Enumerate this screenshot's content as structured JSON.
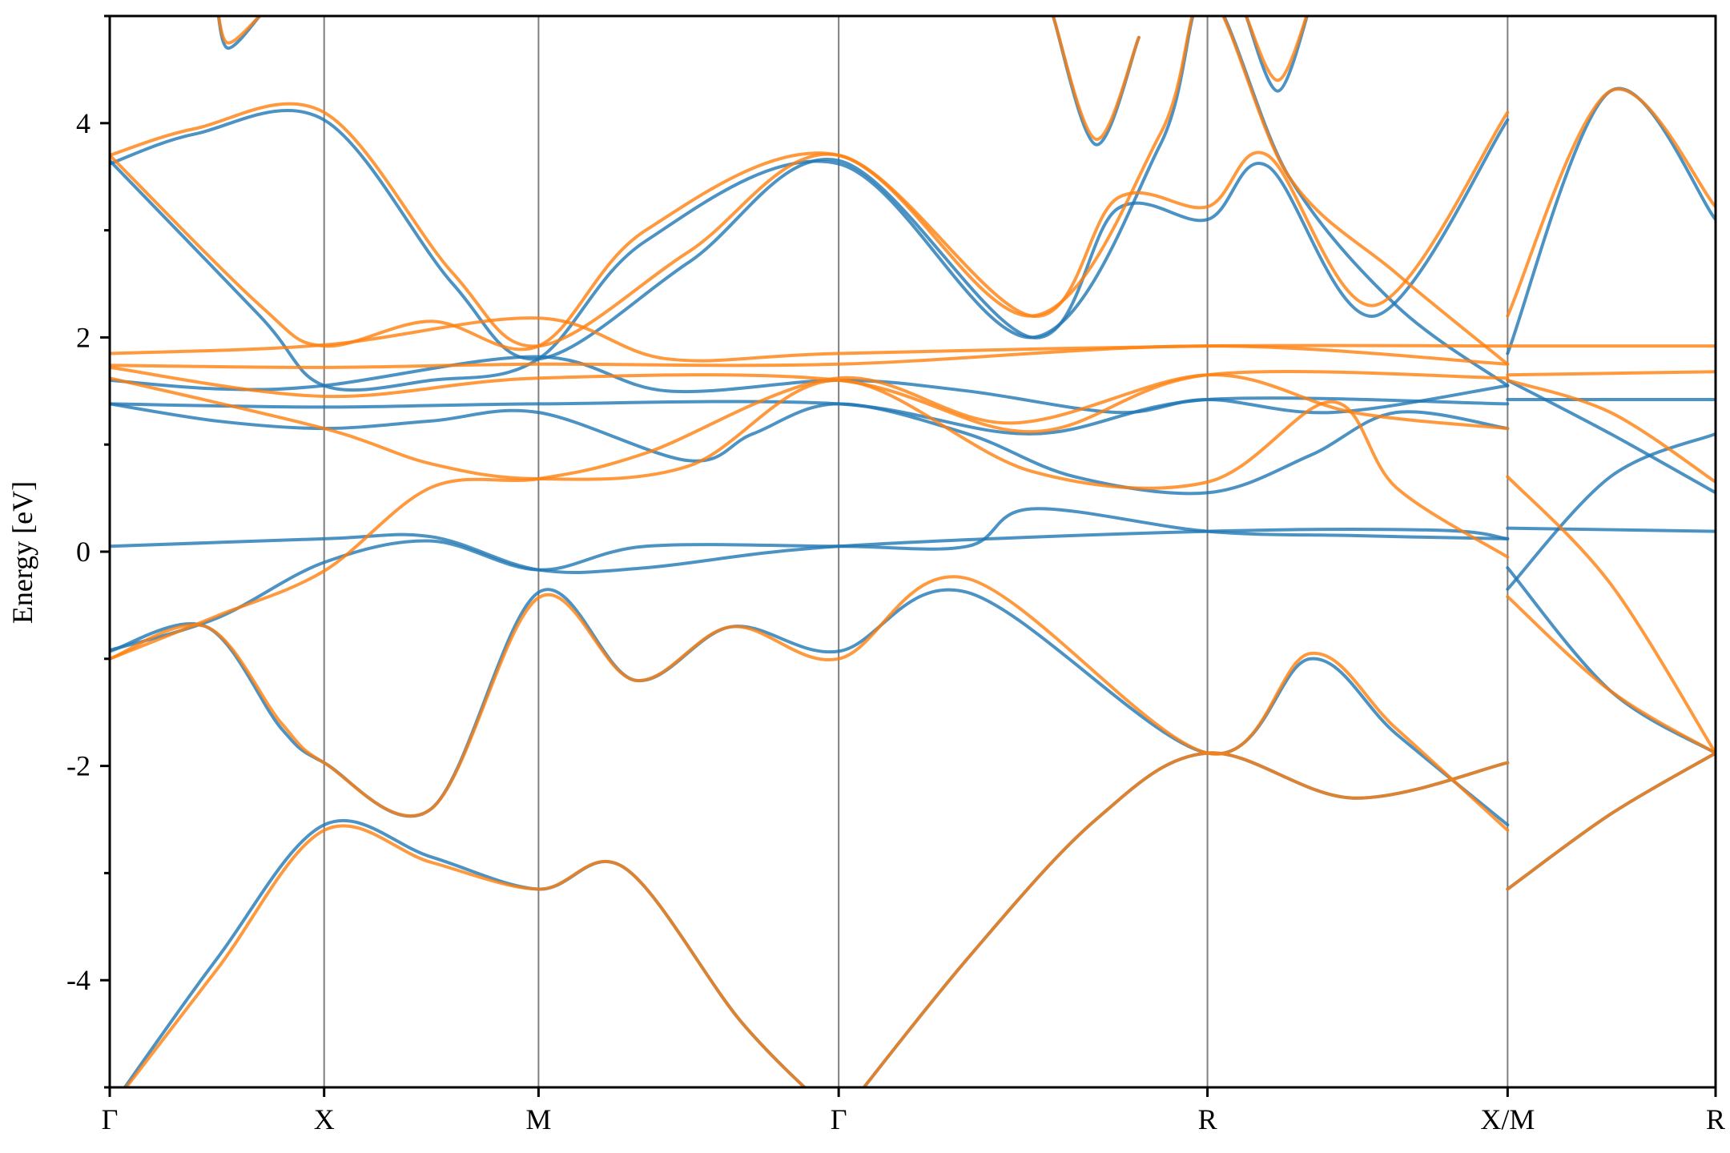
{
  "chart_data": {
    "type": "line",
    "title": "",
    "ylabel": "Energy [eV]",
    "xlabel": "",
    "ylim": [
      -5,
      5
    ],
    "xlim": [
      0,
      7.49
    ],
    "grid": false,
    "legend": "none",
    "yticks": [
      -4,
      -2,
      0,
      2,
      4
    ],
    "ytick_labels": [
      "-4",
      "-2",
      "0",
      "2",
      "4"
    ],
    "kpoints": [
      {
        "label": "Γ",
        "x": 0
      },
      {
        "label": "X",
        "x": 1.0
      },
      {
        "label": "M",
        "x": 2.0
      },
      {
        "label": "Γ",
        "x": 3.4
      },
      {
        "label": "R",
        "x": 5.12
      },
      {
        "label": "X/M",
        "x": 6.52
      },
      {
        "label": "R",
        "x": 7.49
      }
    ],
    "colors": {
      "series1": "#1f77b4",
      "series2": "#ff7f0e",
      "kline": "#7f7f7f"
    },
    "series": [
      {
        "color": "#1f77b4",
        "bands": [
          [
            [
              0,
              -5.2
            ],
            [
              0.5,
              -3.8
            ],
            [
              1.0,
              -2.55
            ],
            [
              1.5,
              -2.85
            ],
            [
              2.0,
              -3.15
            ],
            [
              2.4,
              -2.95
            ],
            [
              2.95,
              -4.4
            ],
            [
              3.4,
              -5.3
            ]
          ],
          [
            [
              3.4,
              -5.3
            ],
            [
              4.0,
              -3.8
            ],
            [
              4.6,
              -2.5
            ],
            [
              5.12,
              -1.88
            ],
            [
              5.8,
              -2.3
            ],
            [
              6.52,
              -1.97
            ]
          ],
          [
            [
              6.52,
              -3.15
            ],
            [
              7.0,
              -2.45
            ],
            [
              7.49,
              -1.88
            ]
          ],
          [
            [
              0,
              -0.93
            ],
            [
              0.45,
              -0.7
            ],
            [
              0.8,
              -1.65
            ],
            [
              1.0,
              -1.97
            ],
            [
              1.5,
              -2.4
            ],
            [
              2.0,
              -0.38
            ],
            [
              2.45,
              -1.2
            ],
            [
              2.9,
              -0.7
            ],
            [
              3.4,
              -0.93
            ],
            [
              4.0,
              -0.38
            ],
            [
              5.12,
              -1.88
            ],
            [
              5.6,
              -1.0
            ],
            [
              6.0,
              -1.7
            ],
            [
              6.52,
              -2.55
            ]
          ],
          [
            [
              6.52,
              -0.15
            ],
            [
              7.0,
              -1.3
            ],
            [
              7.49,
              -1.88
            ]
          ],
          [
            [
              0,
              -0.92
            ],
            [
              0.5,
              -0.62
            ],
            [
              1.0,
              -0.1
            ],
            [
              1.5,
              0.1
            ],
            [
              2.0,
              -0.17
            ],
            [
              2.5,
              0.05
            ],
            [
              3.4,
              0.05
            ],
            [
              4.0,
              0.05
            ],
            [
              4.3,
              0.4
            ],
            [
              5.12,
              0.19
            ],
            [
              5.8,
              0.15
            ],
            [
              6.52,
              0.12
            ]
          ],
          [
            [
              6.52,
              0.22
            ],
            [
              7.49,
              0.19
            ]
          ],
          [
            [
              0,
              0.05
            ],
            [
              1.0,
              0.12
            ],
            [
              1.5,
              0.14
            ],
            [
              2.0,
              -0.17
            ],
            [
              2.5,
              -0.15
            ],
            [
              3.4,
              0.05
            ],
            [
              5.12,
              0.19
            ],
            [
              6.2,
              0.2
            ],
            [
              6.52,
              0.12
            ]
          ],
          [
            [
              6.52,
              -0.35
            ],
            [
              7.0,
              0.7
            ],
            [
              7.49,
              1.1
            ]
          ],
          [
            [
              0,
              1.38
            ],
            [
              0.5,
              1.22
            ],
            [
              1.0,
              1.15
            ],
            [
              1.5,
              1.22
            ],
            [
              2.0,
              1.3
            ],
            [
              2.7,
              0.85
            ],
            [
              3.0,
              1.1
            ],
            [
              3.4,
              1.38
            ],
            [
              4.0,
              1.1
            ],
            [
              4.5,
              0.7
            ],
            [
              5.12,
              0.55
            ],
            [
              5.6,
              0.9
            ],
            [
              6.0,
              1.3
            ],
            [
              6.52,
              1.15
            ]
          ],
          [
            [
              0,
              1.38
            ],
            [
              1.0,
              1.35
            ],
            [
              2.0,
              1.38
            ],
            [
              3.4,
              1.38
            ],
            [
              4.3,
              1.1
            ],
            [
              5.12,
              1.42
            ],
            [
              6.52,
              1.38
            ]
          ],
          [
            [
              6.52,
              1.42
            ],
            [
              7.49,
              1.42
            ]
          ],
          [
            [
              0,
              1.6
            ],
            [
              0.5,
              1.52
            ],
            [
              1.0,
              1.55
            ],
            [
              2.0,
              1.82
            ],
            [
              2.6,
              1.5
            ],
            [
              3.4,
              1.6
            ],
            [
              4.0,
              1.5
            ],
            [
              4.7,
              1.3
            ],
            [
              5.12,
              1.42
            ],
            [
              5.7,
              1.3
            ],
            [
              6.52,
              1.55
            ]
          ],
          [
            [
              6.52,
              1.6
            ],
            [
              7.0,
              1.1
            ],
            [
              7.49,
              0.55
            ]
          ],
          [
            [
              0,
              3.62
            ],
            [
              0.4,
              3.9
            ],
            [
              1.0,
              4.03
            ],
            [
              1.6,
              2.5
            ],
            [
              2.0,
              1.8
            ],
            [
              2.7,
              2.7
            ],
            [
              3.4,
              3.65
            ],
            [
              4.3,
              2.0
            ],
            [
              4.7,
              3.2
            ],
            [
              5.12,
              3.1
            ],
            [
              5.4,
              3.6
            ],
            [
              5.9,
              2.2
            ],
            [
              6.52,
              4.03
            ]
          ],
          [
            [
              0,
              3.65
            ],
            [
              0.7,
              2.2
            ],
            [
              1.0,
              1.55
            ],
            [
              1.5,
              1.6
            ],
            [
              2.0,
              1.8
            ],
            [
              2.5,
              2.9
            ],
            [
              3.4,
              3.62
            ],
            [
              4.3,
              2.0
            ],
            [
              4.9,
              3.8
            ],
            [
              5.12,
              5.2
            ],
            [
              5.5,
              3.5
            ],
            [
              6.0,
              2.3
            ],
            [
              6.52,
              1.55
            ]
          ],
          [
            [
              6.52,
              1.85
            ],
            [
              7.0,
              4.3
            ],
            [
              7.49,
              3.1
            ]
          ],
          [
            [
              0.5,
              5.1
            ],
            [
              0.55,
              4.7
            ],
            [
              0.7,
              5.0
            ]
          ],
          [
            [
              4.4,
              5.0
            ],
            [
              4.6,
              3.8
            ],
            [
              4.8,
              4.8
            ]
          ],
          [
            [
              5.3,
              5.0
            ],
            [
              5.45,
              4.3
            ],
            [
              5.6,
              5.1
            ]
          ]
        ]
      },
      {
        "color": "#ff7f0e",
        "bands": [
          [
            [
              0,
              -5.2
            ],
            [
              0.5,
              -3.9
            ],
            [
              1.0,
              -2.6
            ],
            [
              1.5,
              -2.9
            ],
            [
              2.0,
              -3.15
            ],
            [
              2.4,
              -2.95
            ],
            [
              2.95,
              -4.4
            ],
            [
              3.4,
              -5.3
            ]
          ],
          [
            [
              3.4,
              -5.3
            ],
            [
              4.0,
              -3.8
            ],
            [
              4.6,
              -2.5
            ],
            [
              5.12,
              -1.88
            ],
            [
              5.8,
              -2.3
            ],
            [
              6.52,
              -1.97
            ]
          ],
          [
            [
              6.52,
              -3.15
            ],
            [
              7.0,
              -2.45
            ],
            [
              7.49,
              -1.88
            ]
          ],
          [
            [
              0,
              -1.0
            ],
            [
              0.45,
              -0.7
            ],
            [
              0.8,
              -1.6
            ],
            [
              1.0,
              -1.97
            ],
            [
              1.5,
              -2.4
            ],
            [
              2.0,
              -0.43
            ],
            [
              2.45,
              -1.2
            ],
            [
              2.9,
              -0.7
            ],
            [
              3.4,
              -1.0
            ],
            [
              4.0,
              -0.25
            ],
            [
              5.12,
              -1.88
            ],
            [
              5.6,
              -0.95
            ],
            [
              6.0,
              -1.65
            ],
            [
              6.52,
              -2.6
            ]
          ],
          [
            [
              6.52,
              -0.42
            ],
            [
              7.0,
              -1.3
            ],
            [
              7.49,
              -1.88
            ]
          ],
          [
            [
              0,
              -1.0
            ],
            [
              0.5,
              -0.6
            ],
            [
              1.0,
              -0.18
            ],
            [
              1.5,
              0.6
            ],
            [
              2.0,
              0.68
            ],
            [
              2.5,
              0.92
            ],
            [
              3.4,
              1.62
            ],
            [
              4.2,
              1.2
            ],
            [
              5.12,
              1.65
            ],
            [
              5.8,
              1.3
            ],
            [
              6.52,
              1.15
            ]
          ],
          [
            [
              6.52,
              0.7
            ],
            [
              7.0,
              -0.3
            ],
            [
              7.49,
              -1.88
            ]
          ],
          [
            [
              0,
              1.62
            ],
            [
              1.0,
              1.15
            ],
            [
              1.5,
              0.82
            ],
            [
              2.0,
              0.68
            ],
            [
              2.7,
              0.8
            ],
            [
              3.4,
              1.6
            ],
            [
              4.3,
              0.75
            ],
            [
              5.12,
              0.65
            ],
            [
              5.7,
              1.4
            ],
            [
              6.0,
              0.6
            ],
            [
              6.52,
              -0.05
            ]
          ],
          [
            [
              6.52,
              1.6
            ],
            [
              7.0,
              1.3
            ],
            [
              7.49,
              0.65
            ]
          ],
          [
            [
              0,
              1.72
            ],
            [
              1.0,
              1.45
            ],
            [
              2.0,
              1.62
            ],
            [
              3.4,
              1.6
            ],
            [
              4.3,
              1.12
            ],
            [
              5.12,
              1.65
            ],
            [
              6.52,
              1.62
            ]
          ],
          [
            [
              6.52,
              1.65
            ],
            [
              7.49,
              1.68
            ]
          ],
          [
            [
              0,
              1.74
            ],
            [
              1.0,
              1.72
            ],
            [
              2.0,
              1.75
            ],
            [
              3.4,
              1.75
            ],
            [
              5.12,
              1.92
            ],
            [
              6.52,
              1.75
            ]
          ],
          [
            [
              0,
              1.85
            ],
            [
              1.0,
              1.93
            ],
            [
              2.0,
              2.18
            ],
            [
              2.6,
              1.8
            ],
            [
              3.4,
              1.85
            ],
            [
              5.12,
              1.92
            ],
            [
              6.52,
              1.92
            ]
          ],
          [
            [
              6.52,
              1.92
            ],
            [
              7.49,
              1.92
            ]
          ],
          [
            [
              0,
              3.7
            ],
            [
              0.4,
              3.95
            ],
            [
              1.0,
              4.1
            ],
            [
              1.6,
              2.6
            ],
            [
              2.0,
              1.92
            ],
            [
              2.7,
              2.8
            ],
            [
              3.4,
              3.7
            ],
            [
              4.3,
              2.2
            ],
            [
              4.7,
              3.3
            ],
            [
              5.12,
              3.22
            ],
            [
              5.4,
              3.7
            ],
            [
              5.9,
              2.3
            ],
            [
              6.52,
              4.1
            ]
          ],
          [
            [
              0,
              3.7
            ],
            [
              0.7,
              2.3
            ],
            [
              1.0,
              1.92
            ],
            [
              1.5,
              2.15
            ],
            [
              2.0,
              1.92
            ],
            [
              2.5,
              3.0
            ],
            [
              3.4,
              3.7
            ],
            [
              4.3,
              2.2
            ],
            [
              4.9,
              3.9
            ],
            [
              5.12,
              5.2
            ],
            [
              5.5,
              3.5
            ],
            [
              6.0,
              2.6
            ],
            [
              6.52,
              1.75
            ]
          ],
          [
            [
              6.52,
              2.2
            ],
            [
              7.0,
              4.3
            ],
            [
              7.49,
              3.22
            ]
          ],
          [
            [
              0.5,
              5.1
            ],
            [
              0.55,
              4.75
            ],
            [
              0.7,
              5.0
            ]
          ],
          [
            [
              4.4,
              5.0
            ],
            [
              4.6,
              3.85
            ],
            [
              4.8,
              4.8
            ]
          ],
          [
            [
              5.3,
              5.0
            ],
            [
              5.45,
              4.4
            ],
            [
              5.6,
              5.1
            ]
          ]
        ]
      }
    ]
  }
}
